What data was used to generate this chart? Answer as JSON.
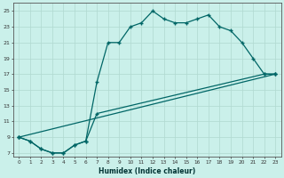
{
  "xlabel": "Humidex (Indice chaleur)",
  "background_color": "#caf0ea",
  "grid_color": "#b0d8d0",
  "line_color": "#006666",
  "xlim": [
    -0.5,
    23.5
  ],
  "ylim": [
    6.5,
    26
  ],
  "xticks": [
    0,
    1,
    2,
    3,
    4,
    5,
    6,
    7,
    8,
    9,
    10,
    11,
    12,
    13,
    14,
    15,
    16,
    17,
    18,
    19,
    20,
    21,
    22,
    23
  ],
  "yticks": [
    7,
    9,
    11,
    13,
    15,
    17,
    19,
    21,
    23,
    25
  ],
  "line1_x": [
    0,
    1,
    2,
    3,
    4,
    5,
    6,
    7,
    8,
    9,
    10,
    11,
    12,
    13,
    14,
    15,
    16,
    17,
    18,
    19,
    20,
    21,
    22,
    23
  ],
  "line1_y": [
    9,
    8.5,
    7.5,
    7,
    7,
    8,
    8.5,
    16,
    21,
    21,
    23,
    23.5,
    25,
    24,
    23.5,
    23.5,
    24,
    24.5,
    23,
    22.5,
    21,
    19,
    17,
    17
  ],
  "line2_x": [
    0,
    1,
    2,
    3,
    4,
    5,
    6,
    7,
    22,
    23
  ],
  "line2_y": [
    9,
    8.5,
    7.5,
    7,
    7,
    8,
    8.5,
    12,
    17,
    17
  ],
  "line3_x": [
    0,
    23
  ],
  "line3_y": [
    9,
    17
  ]
}
